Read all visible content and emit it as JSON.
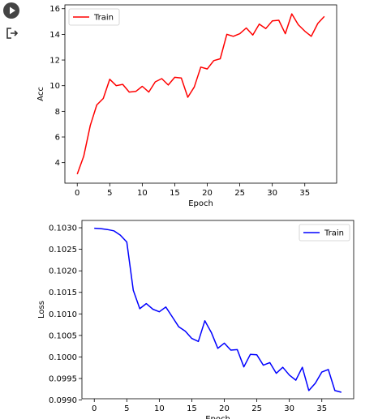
{
  "gutter": {
    "run_icon": "play-circle-icon",
    "output_icon": "exit-output-icon"
  },
  "chart_data": [
    {
      "type": "line",
      "xlabel": "Epoch",
      "ylabel": "Acc",
      "xticks": [
        0,
        5,
        10,
        15,
        20,
        25,
        30,
        35
      ],
      "yticks": [
        4,
        6,
        8,
        10,
        12,
        14,
        16
      ],
      "xlim": [
        -1.9,
        39.9
      ],
      "ylim": [
        2.4,
        16.3
      ],
      "grid": false,
      "legend_placement": "top-left",
      "series": [
        {
          "name": "Train",
          "color": "#ff0000",
          "x": [
            0,
            1,
            2,
            3,
            4,
            5,
            6,
            7,
            8,
            9,
            10,
            11,
            12,
            13,
            14,
            15,
            16,
            17,
            18,
            19,
            20,
            21,
            22,
            23,
            24,
            25,
            26,
            27,
            28,
            29,
            30,
            31,
            32,
            33,
            34,
            35,
            36,
            37,
            38
          ],
          "values": [
            3.1,
            4.5,
            6.9,
            8.5,
            9.0,
            10.5,
            10.0,
            10.1,
            9.5,
            9.55,
            9.95,
            9.5,
            10.3,
            10.55,
            10.05,
            10.65,
            10.6,
            9.1,
            9.9,
            11.45,
            11.3,
            11.95,
            12.1,
            14.0,
            13.85,
            14.05,
            14.5,
            13.95,
            14.8,
            14.45,
            15.05,
            15.1,
            14.05,
            15.6,
            14.75,
            14.25,
            13.85,
            14.85,
            15.4
          ]
        }
      ]
    },
    {
      "type": "line",
      "xlabel": "Epoch",
      "ylabel": "Loss",
      "xticks": [
        0,
        5,
        10,
        15,
        20,
        25,
        30,
        35
      ],
      "yticks": [
        0.099,
        0.0995,
        0.1,
        0.1005,
        0.101,
        0.1015,
        0.102,
        0.1025,
        0.103
      ],
      "ytick_labels": [
        "0.0990",
        "0.0995",
        "0.1000",
        "0.1005",
        "0.1010",
        "0.1015",
        "0.1020",
        "0.1025",
        "0.1030"
      ],
      "xlim": [
        -1.9,
        39.9
      ],
      "ylim": [
        0.09903,
        0.10317
      ],
      "grid": false,
      "legend_placement": "top-right",
      "series": [
        {
          "name": "Train",
          "color": "#0000ff",
          "x": [
            0,
            1,
            2,
            3,
            4,
            5,
            6,
            7,
            8,
            9,
            10,
            11,
            12,
            13,
            14,
            15,
            16,
            17,
            18,
            19,
            20,
            21,
            22,
            23,
            24,
            25,
            26,
            27,
            28,
            29,
            30,
            31,
            32,
            33,
            34,
            35,
            36,
            37,
            38
          ],
          "values": [
            0.10299,
            0.10298,
            0.10296,
            0.10293,
            0.10283,
            0.10267,
            0.10155,
            0.10112,
            0.10124,
            0.10111,
            0.10105,
            0.10116,
            0.10093,
            0.1007,
            0.1006,
            0.10043,
            0.10036,
            0.10084,
            0.10057,
            0.1002,
            0.10032,
            0.10016,
            0.10017,
            0.09977,
            0.10006,
            0.10005,
            0.09981,
            0.09987,
            0.09962,
            0.09976,
            0.09958,
            0.09946,
            0.09976,
            0.09922,
            0.09939,
            0.09965,
            0.09971,
            0.09922,
            0.09918
          ]
        }
      ]
    }
  ]
}
